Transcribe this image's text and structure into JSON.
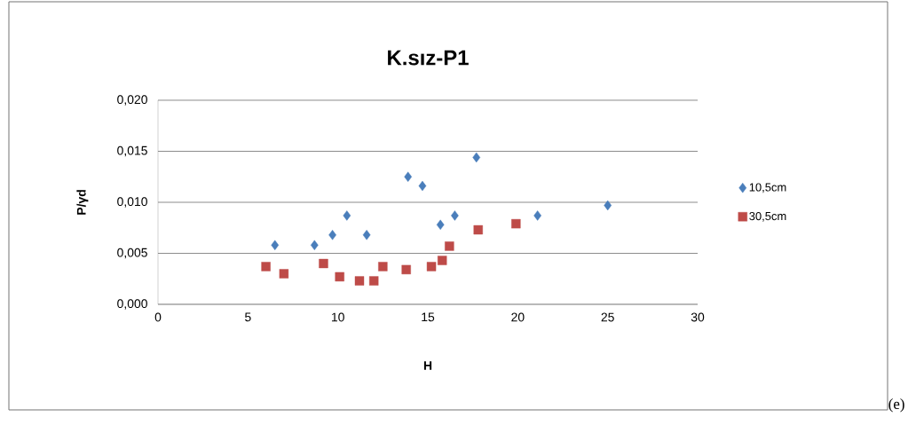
{
  "chart_data": {
    "type": "scatter",
    "title": "K.sız-P1",
    "xlabel": "H",
    "ylabel": "P/γd",
    "xlim": [
      0,
      30
    ],
    "xticks": [
      0,
      5,
      10,
      15,
      20,
      25,
      30
    ],
    "ylim": [
      0,
      0.02
    ],
    "yticks": [
      {
        "value": 0,
        "label": "0,000"
      },
      {
        "value": 0.005,
        "label": "0,005"
      },
      {
        "value": 0.01,
        "label": "0,010"
      },
      {
        "value": 0.015,
        "label": "0,015"
      },
      {
        "value": 0.02,
        "label": "0,020"
      }
    ],
    "grid": "y",
    "legend": "right",
    "annotations": [
      "(e)"
    ],
    "series": [
      {
        "name": "10,5cm",
        "color": "#4a7ebb",
        "marker": "diamond",
        "x": [
          6.5,
          8.7,
          9.7,
          10.5,
          11.6,
          13.9,
          14.7,
          15.7,
          16.5,
          17.7,
          21.1,
          25.0
        ],
        "values": [
          0.0058,
          0.0058,
          0.0068,
          0.0087,
          0.0068,
          0.0125,
          0.0116,
          0.0078,
          0.0087,
          0.0144,
          0.0087,
          0.0097
        ]
      },
      {
        "name": "30,5cm",
        "color": "#be4b48",
        "marker": "square",
        "x": [
          6.0,
          7.0,
          9.2,
          10.1,
          11.2,
          12.0,
          12.5,
          13.8,
          15.2,
          15.8,
          16.2,
          17.8,
          19.9
        ],
        "values": [
          0.0037,
          0.003,
          0.004,
          0.0027,
          0.0023,
          0.0023,
          0.0037,
          0.0034,
          0.0037,
          0.0043,
          0.0057,
          0.0073,
          0.0079
        ]
      }
    ]
  }
}
